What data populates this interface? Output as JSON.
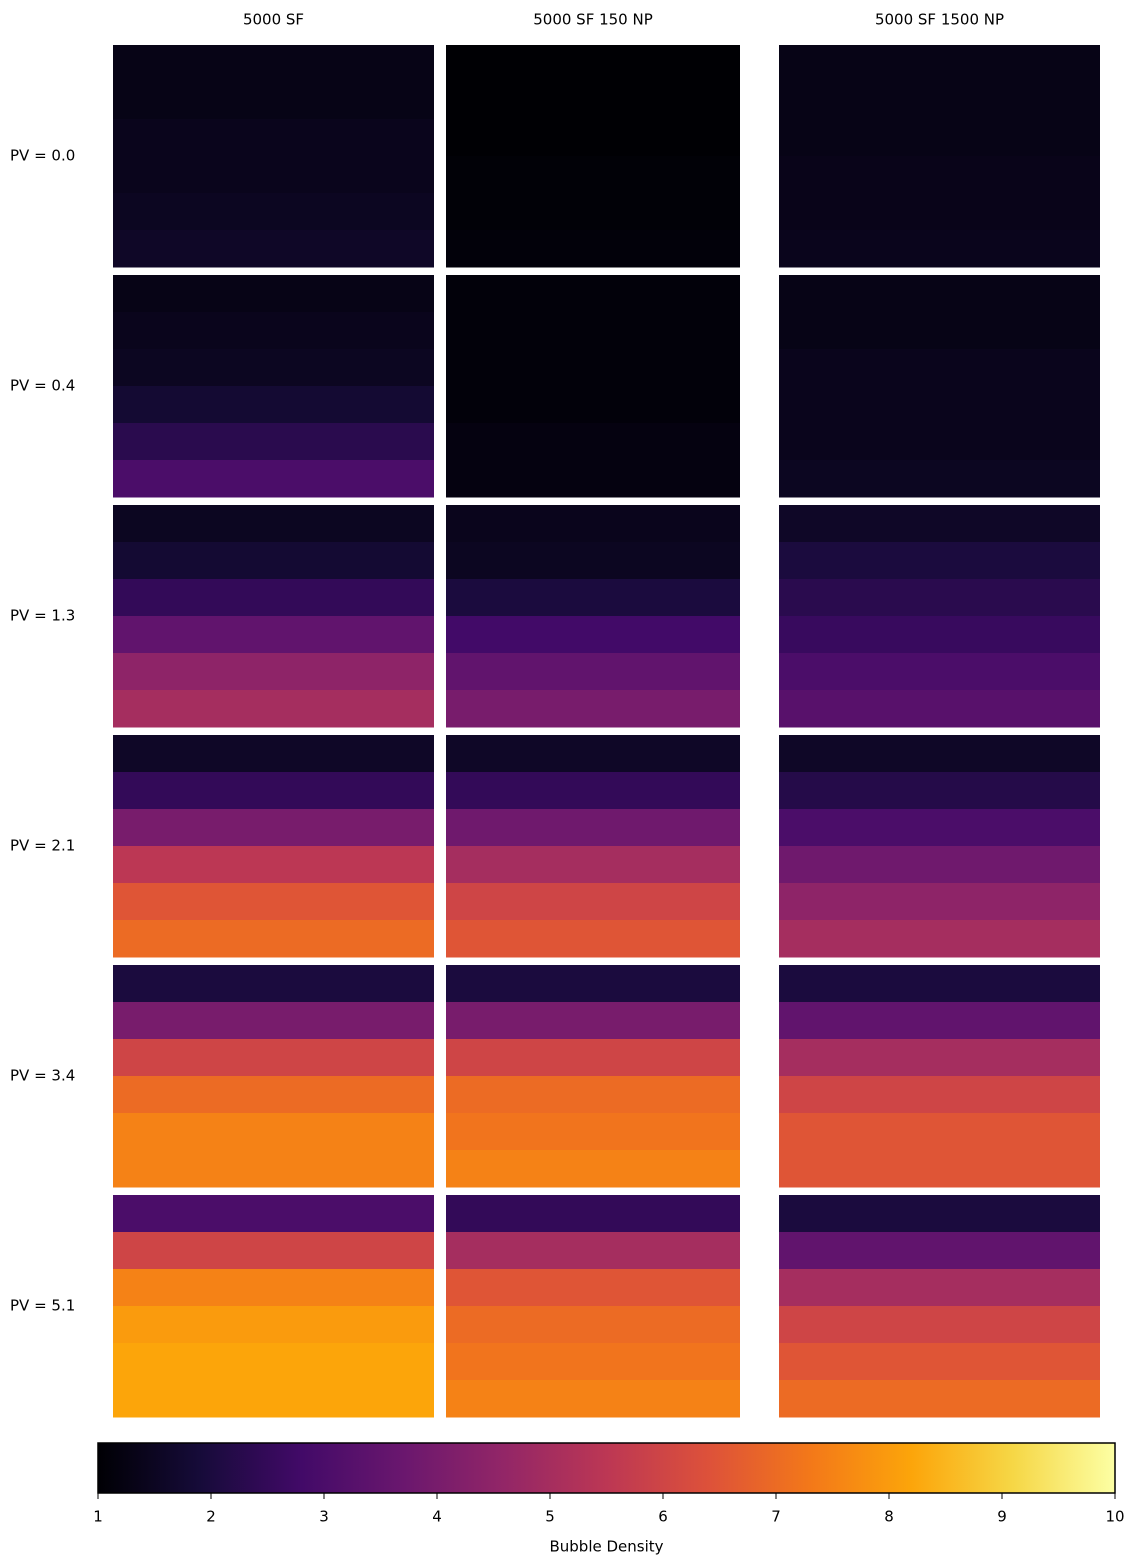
{
  "chart_data": {
    "type": "heatmap",
    "columns": [
      "5000 SF",
      "5000 SF 150 NP",
      "5000 SF 1500 NP"
    ],
    "rows": [
      "PV = 0.0",
      "PV = 0.4",
      "PV = 1.3",
      "PV = 2.1",
      "PV = 3.4",
      "PV = 5.1"
    ],
    "panels": [
      [
        [
          1.3,
          1.3,
          1.4,
          1.4,
          1.5,
          1.6
        ],
        [
          1.0,
          1.0,
          1.0,
          1.05,
          1.05,
          1.1
        ],
        [
          1.3,
          1.3,
          1.3,
          1.35,
          1.35,
          1.4
        ]
      ],
      [
        [
          1.3,
          1.4,
          1.5,
          1.8,
          2.3,
          3.0
        ],
        [
          1.1,
          1.1,
          1.1,
          1.1,
          1.2,
          1.2
        ],
        [
          1.3,
          1.3,
          1.4,
          1.4,
          1.4,
          1.5
        ]
      ],
      [
        [
          1.5,
          1.8,
          2.5,
          3.5,
          4.5,
          5.0
        ],
        [
          1.4,
          1.5,
          2.0,
          2.8,
          3.5,
          4.0
        ],
        [
          1.6,
          2.0,
          2.3,
          2.6,
          3.0,
          3.3
        ]
      ],
      [
        [
          1.6,
          2.5,
          4.0,
          5.5,
          6.5,
          7.0
        ],
        [
          1.6,
          2.5,
          3.8,
          5.0,
          6.0,
          6.5
        ],
        [
          1.6,
          2.2,
          3.0,
          3.8,
          4.5,
          5.0
        ]
      ],
      [
        [
          2.0,
          4.0,
          6.0,
          7.0,
          7.5,
          7.5
        ],
        [
          2.0,
          4.0,
          6.0,
          7.0,
          7.2,
          7.5
        ],
        [
          2.0,
          3.5,
          5.0,
          6.0,
          6.5,
          6.5
        ]
      ],
      [
        [
          3.0,
          6.0,
          7.5,
          8.0,
          8.2,
          8.2
        ],
        [
          2.5,
          5.0,
          6.5,
          7.0,
          7.2,
          7.5
        ],
        [
          2.0,
          3.5,
          5.0,
          6.0,
          6.5,
          7.0
        ]
      ]
    ],
    "colorbar": {
      "label": "Bubble Density",
      "lim": [
        1,
        10
      ],
      "ticks": [
        1,
        2,
        3,
        4,
        5,
        6,
        7,
        8,
        9,
        10
      ]
    },
    "colors": [
      "#000004",
      "#160b39",
      "#420a68",
      "#6a176e",
      "#932667",
      "#bc3754",
      "#dd513a",
      "#f37819",
      "#fca50a",
      "#f6d746",
      "#fcffa4"
    ]
  }
}
